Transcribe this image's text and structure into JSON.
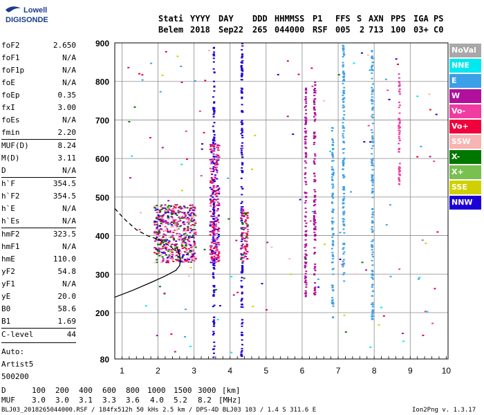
{
  "logo": {
    "line1": "Lowell",
    "line2": "DIGISONDE"
  },
  "header": {
    "labels": [
      "Stati",
      "YYYY",
      "DAY",
      "DDD",
      "HHMMSS",
      "P1",
      "FFS",
      "S",
      "AXN",
      "PPS",
      "IGA",
      "PS"
    ],
    "values": [
      "Belem",
      "2018",
      "Sep22",
      "265",
      "044000",
      "RSF",
      "005",
      "2",
      "713",
      "100",
      "03+",
      "C0"
    ]
  },
  "scaled_params": [
    {
      "name": "foF2",
      "value": "2.650"
    },
    {
      "name": "foF1",
      "value": "N/A"
    },
    {
      "name": "foF1p",
      "value": "N/A"
    },
    {
      "name": "foE",
      "value": "N/A"
    },
    {
      "name": "foEp",
      "value": "0.35"
    },
    {
      "name": "fxI",
      "value": "3.00"
    },
    {
      "name": "foEs",
      "value": "N/A"
    },
    {
      "name": "fmin",
      "value": "2.20"
    },
    {
      "name": "MUF(D)",
      "value": "8.24"
    },
    {
      "name": "M(D)",
      "value": "3.11"
    },
    {
      "name": "D",
      "value": "N/A"
    },
    {
      "name": "h`F",
      "value": "354.5"
    },
    {
      "name": "h`F2",
      "value": "354.5"
    },
    {
      "name": "h`E",
      "value": "N/A"
    },
    {
      "name": "h`Es",
      "value": "N/A"
    },
    {
      "name": "hmF2",
      "value": "323.5"
    },
    {
      "name": "hmF1",
      "value": "N/A"
    },
    {
      "name": "hmE",
      "value": "110.0"
    },
    {
      "name": "yF2",
      "value": "54.8"
    },
    {
      "name": "yF1",
      "value": "N/A"
    },
    {
      "name": "yE",
      "value": "20.0"
    },
    {
      "name": "B0",
      "value": "58.6"
    },
    {
      "name": "B1",
      "value": "1.69"
    },
    {
      "name": "C-level",
      "value": "44"
    }
  ],
  "auto": {
    "line1": "Auto:",
    "line2": "Artist5",
    "line3": "500200"
  },
  "legend": [
    {
      "label": "NoVal",
      "color": "#a8a8a8"
    },
    {
      "label": "NNE",
      "color": "#00e8f0"
    },
    {
      "label": "E",
      "color": "#3ca0e8"
    },
    {
      "label": "W",
      "color": "#b0109c"
    },
    {
      "label": "Vo-",
      "color": "#f03ca0"
    },
    {
      "label": "Vo+",
      "color": "#f0003c"
    },
    {
      "label": "SSW",
      "color": "#f8b4b4"
    },
    {
      "label": "X-",
      "color": "#007800"
    },
    {
      "label": "X+",
      "color": "#78c050"
    },
    {
      "label": "SSE",
      "color": "#d0d000"
    },
    {
      "label": "NNW",
      "color": "#1c00d8"
    }
  ],
  "muf_table": {
    "d_label": "D",
    "d_values": [
      "100",
      "200",
      "400",
      "600",
      "800",
      "1000",
      "1500",
      "3000",
      "[km]"
    ],
    "muf_label": "MUF",
    "muf_values": [
      "3.0",
      "3.0",
      "3.1",
      "3.3",
      "3.6",
      "4.0",
      "5.2",
      "8.2",
      "[MHz]"
    ]
  },
  "footer": {
    "left": "BLJ03_2018265044000.RSF / 184fx512h 50 kHs 2.5 km / DPS-4D BLJ03 103 / 1.4 S 311.6 E",
    "right": "Ion2Png v. 1.3.17"
  },
  "chart_data": {
    "type": "scatter",
    "title": "",
    "xlabel": "",
    "ylabel": "",
    "xlim": [
      0.8,
      10.05
    ],
    "ylim": [
      80,
      900
    ],
    "x_ticks": [
      1,
      2,
      3,
      4,
      5,
      6,
      7,
      8,
      9,
      10
    ],
    "y_ticks": [
      80,
      200,
      300,
      400,
      500,
      600,
      700,
      800,
      900
    ],
    "y_tick_labels": [
      "80",
      "200",
      "300",
      "400",
      "500",
      "600",
      "700",
      "800",
      "900"
    ],
    "grid": true,
    "clusters": [
      {
        "name": "F2 trace",
        "freq_range": [
          1.9,
          3.05
        ],
        "height_range": [
          330,
          480
        ],
        "colors": [
          "W",
          "Vo-",
          "Vo+",
          "X-",
          "NNW",
          "SSW"
        ]
      },
      {
        "name": "2F trace",
        "freq_range": [
          3.45,
          3.7
        ],
        "height_range": [
          330,
          640
        ],
        "colors": [
          "W",
          "Vo-",
          "Vo+",
          "NNW"
        ]
      },
      {
        "name": "3F trace",
        "freq_range": [
          4.3,
          4.5
        ],
        "height_range": [
          330,
          470
        ],
        "colors": [
          "Vo-",
          "Vo+",
          "X-",
          "W"
        ]
      }
    ],
    "vertical_streaks": [
      {
        "freq": 3.55,
        "height_range": [
          80,
          890
        ],
        "color": "NNW"
      },
      {
        "freq": 4.33,
        "height_range": [
          80,
          900
        ],
        "color": "NNW"
      },
      {
        "freq": 6.1,
        "height_range": [
          240,
          800
        ],
        "color": "W"
      },
      {
        "freq": 6.35,
        "height_range": [
          240,
          810
        ],
        "color": "W"
      },
      {
        "freq": 6.85,
        "height_range": [
          180,
          680
        ],
        "color": "E"
      },
      {
        "freq": 7.15,
        "height_range": [
          280,
          900
        ],
        "color": "E"
      },
      {
        "freq": 7.95,
        "height_range": [
          180,
          880
        ],
        "color": "E"
      },
      {
        "freq": 8.7,
        "height_range": [
          520,
          820
        ],
        "color": "Vo-"
      }
    ],
    "profile_curves": [
      {
        "name": "solid profile",
        "style": "solid",
        "x": [
          0.8,
          1.3,
          1.8,
          2.2,
          2.5,
          2.6,
          2.62,
          2.6,
          2.52
        ],
        "y": [
          240,
          258,
          278,
          295,
          310,
          322,
          335,
          350,
          370
        ]
      },
      {
        "name": "dashed profile",
        "style": "dashed",
        "x": [
          0.8,
          1.1,
          1.4,
          1.7,
          2.0,
          2.2,
          2.35,
          2.45
        ],
        "y": [
          470,
          440,
          415,
          400,
          390,
          380,
          372,
          362
        ]
      }
    ]
  }
}
